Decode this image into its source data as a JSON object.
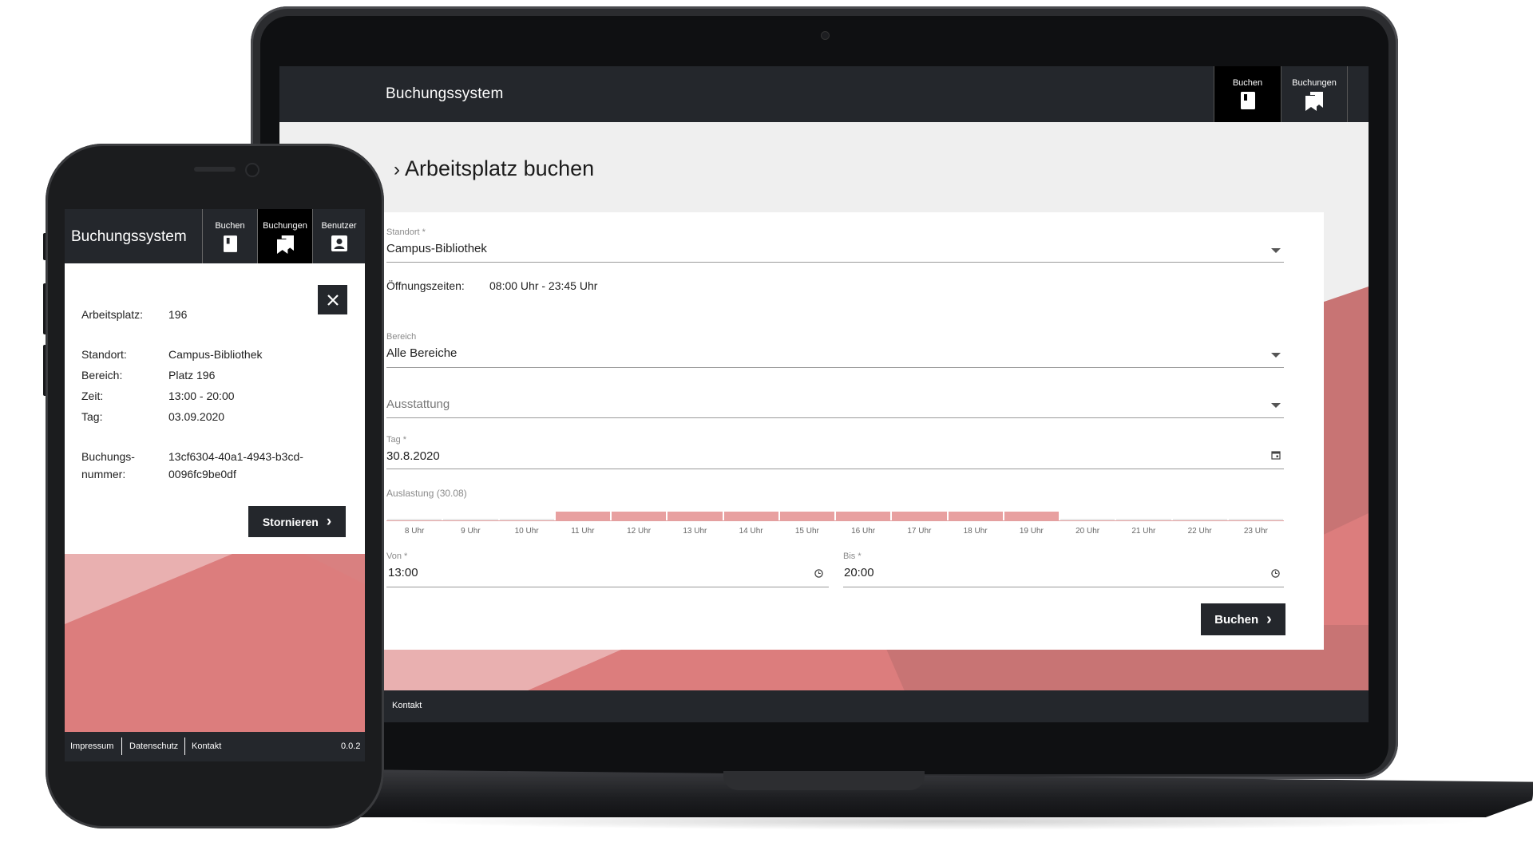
{
  "app_title": "Buchungssystem",
  "desktop": {
    "nav": [
      {
        "label": "Buchen",
        "icon": "book-icon",
        "active": true
      },
      {
        "label": "Buchungen",
        "icon": "bookmarks-icon",
        "active": false
      }
    ],
    "page_title": "Arbeitsplatz buchen",
    "form": {
      "standort_label": "Standort *",
      "standort_value": "Campus-Bibliothek",
      "hours_label": "Öffnungszeiten:",
      "hours_value": "08:00 Uhr - 23:45 Uhr",
      "bereich_label": "Bereich",
      "bereich_value": "Alle Bereiche",
      "ausstattung_placeholder": "Ausstattung",
      "tag_label": "Tag *",
      "tag_value": "30.8.2020",
      "auslastung_label": "Auslastung (30.08)",
      "von_label": "Von *",
      "von_value": "13:00",
      "bis_label": "Bis *",
      "bis_value": "20:00",
      "submit_label": "Buchen"
    },
    "footer": {
      "kontakt": "Kontakt"
    }
  },
  "chart_data": {
    "type": "bar",
    "title": "Auslastung (30.08)",
    "categories": [
      "8 Uhr",
      "9 Uhr",
      "10 Uhr",
      "11 Uhr",
      "12 Uhr",
      "13 Uhr",
      "14 Uhr",
      "15 Uhr",
      "16 Uhr",
      "17 Uhr",
      "18 Uhr",
      "19 Uhr",
      "20 Uhr",
      "21 Uhr",
      "22 Uhr",
      "23 Uhr"
    ],
    "values": [
      0,
      0,
      0,
      1,
      1,
      1,
      1,
      1,
      1,
      1,
      1,
      1,
      0,
      0,
      0,
      0
    ],
    "colors": {
      "occupied": "#e8a0a0",
      "free": "#eaeaea"
    }
  },
  "mobile": {
    "nav": [
      {
        "label": "Buchen",
        "icon": "book-icon",
        "active": false
      },
      {
        "label": "Buchungen",
        "icon": "bookmarks-icon",
        "active": true
      },
      {
        "label": "Benutzer",
        "icon": "user-badge-icon",
        "active": false
      }
    ],
    "details": {
      "arbeitsplatz_label": "Arbeitsplatz:",
      "arbeitsplatz_value": "196",
      "standort_label": "Standort:",
      "standort_value": "Campus-Bibliothek",
      "bereich_label": "Bereich:",
      "bereich_value": "Platz 196",
      "zeit_label": "Zeit:",
      "zeit_value": "13:00 - 20:00",
      "tag_label": "Tag:",
      "tag_value": "03.09.2020",
      "nummer_label_1": "Buchungs-",
      "nummer_label_2": "nummer:",
      "nummer_value_1": "13cf6304-40a1-4943-b3cd-",
      "nummer_value_2": "0096fc9be0df"
    },
    "cancel_label": "Stornieren",
    "footer": {
      "impressum": "Impressum",
      "datenschutz": "Datenschutz",
      "kontakt": "Kontakt",
      "version": "0.0.2"
    }
  },
  "colors": {
    "header_bg": "#24272c",
    "accent_pink": "#dc7d7d",
    "accent_light_pink": "#e9b0b0",
    "accent_dark_pink": "#c87474"
  }
}
